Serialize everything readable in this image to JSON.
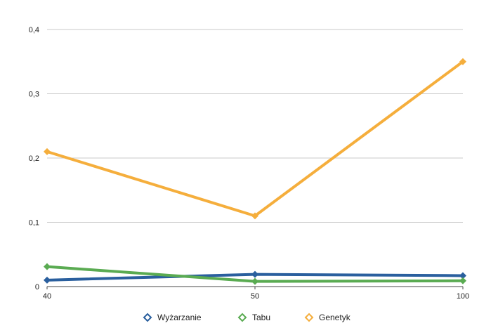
{
  "chart_data": {
    "type": "line",
    "title": "",
    "xlabel": "",
    "ylabel": "",
    "categories": [
      "40",
      "50",
      "100"
    ],
    "ylim": [
      0,
      0.4
    ],
    "yticks": [
      0,
      0.1,
      0.2,
      0.3,
      0.4
    ],
    "ytick_labels": [
      "0",
      "0,1",
      "0,2",
      "0,3",
      "0,4"
    ],
    "grid": true,
    "legend_position": "bottom",
    "series": [
      {
        "name": "Wyżarzanie",
        "color": "#2a5f9e",
        "values": [
          0.01,
          0.019,
          0.017
        ]
      },
      {
        "name": "Tabu",
        "color": "#5aab52",
        "values": [
          0.031,
          0.008,
          0.009
        ]
      },
      {
        "name": "Genetyk",
        "color": "#f5ae3c",
        "values": [
          0.21,
          0.11,
          0.35
        ]
      }
    ]
  }
}
